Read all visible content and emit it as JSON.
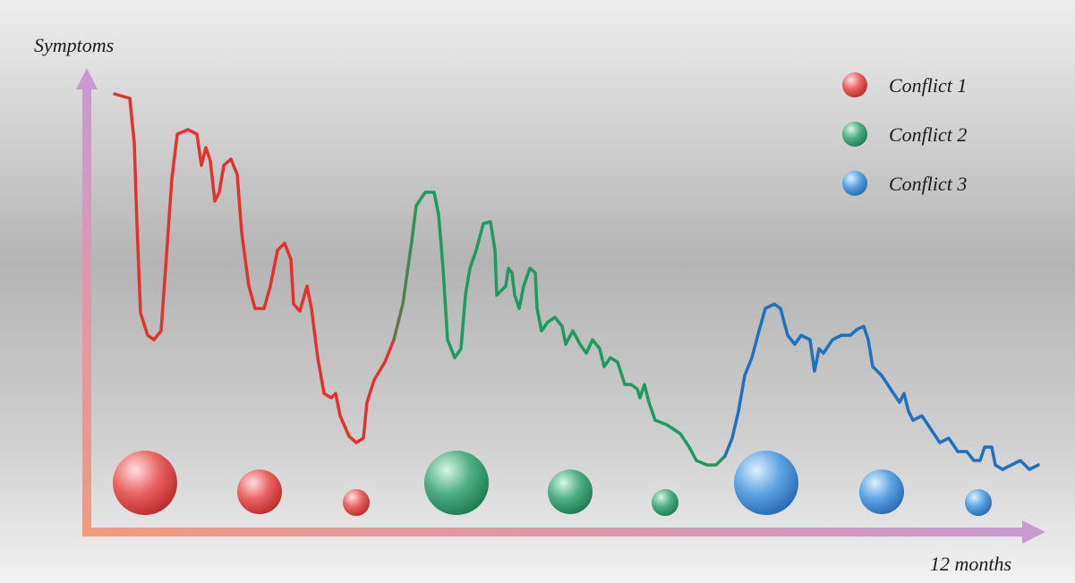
{
  "axes": {
    "y_label": "Symptoms",
    "x_label": "12 months"
  },
  "legend": {
    "items": [
      {
        "label": "Conflict 1"
      },
      {
        "label": "Conflict 2"
      },
      {
        "label": "Conflict 3"
      }
    ]
  }
}
